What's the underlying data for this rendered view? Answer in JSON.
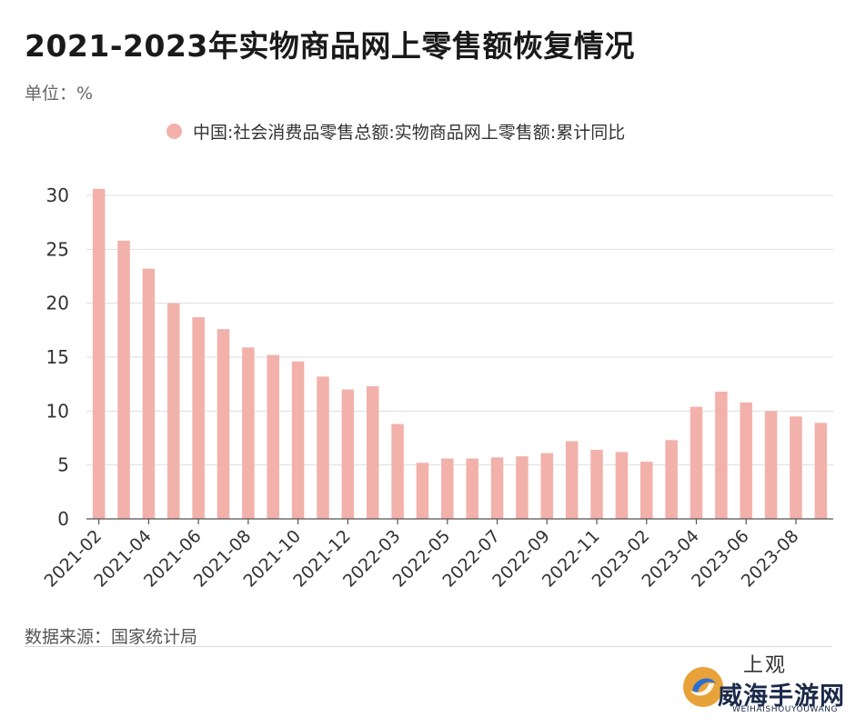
{
  "title": "2021-2023年实物商品网上零售额恢复情况",
  "unit_label": "单位：%",
  "source_label": "数据来源：国家统计局",
  "watermark": {
    "top": "上观",
    "name": "威海手游网",
    "sub": "WEIHAISHOUYOUWANG"
  },
  "colors": {
    "bar": "#f2b1aa",
    "grid": "#dedede",
    "axis": "#555555"
  },
  "chart_data": {
    "type": "bar",
    "categories": [
      "2021-02",
      "2021-03",
      "2021-04",
      "2021-05",
      "2021-06",
      "2021-07",
      "2021-08",
      "2021-09",
      "2021-10",
      "2021-11",
      "2021-12",
      "2022-01",
      "2022-03",
      "2022-04",
      "2022-05",
      "2022-06",
      "2022-07",
      "2022-08",
      "2022-09",
      "2022-10",
      "2022-11",
      "2022-12",
      "2023-02",
      "2023-03",
      "2023-04",
      "2023-05",
      "2023-06",
      "2023-07",
      "2023-08",
      "2023-09"
    ],
    "tick_labels": [
      "2021-02",
      "2021-04",
      "2021-06",
      "2021-08",
      "2021-10",
      "2021-12",
      "2022-03",
      "2022-05",
      "2022-07",
      "2022-09",
      "2022-11",
      "2023-02",
      "2023-04",
      "2023-06",
      "2023-08"
    ],
    "series": [
      {
        "name": "中国:社会消费品零售总额:实物商品网上零售额:累计同比",
        "values": [
          30.6,
          25.8,
          23.2,
          20.0,
          18.7,
          17.6,
          15.9,
          15.2,
          14.6,
          13.2,
          12.0,
          12.3,
          8.8,
          5.2,
          5.6,
          5.6,
          5.7,
          5.8,
          6.1,
          7.2,
          6.4,
          6.2,
          5.3,
          7.3,
          10.4,
          11.8,
          10.8,
          10.0,
          9.5,
          8.9
        ]
      }
    ],
    "ylim": [
      0,
      30
    ],
    "yticks": [
      0,
      5,
      10,
      15,
      20,
      25,
      30
    ],
    "grid": true,
    "legend_position": "top"
  }
}
